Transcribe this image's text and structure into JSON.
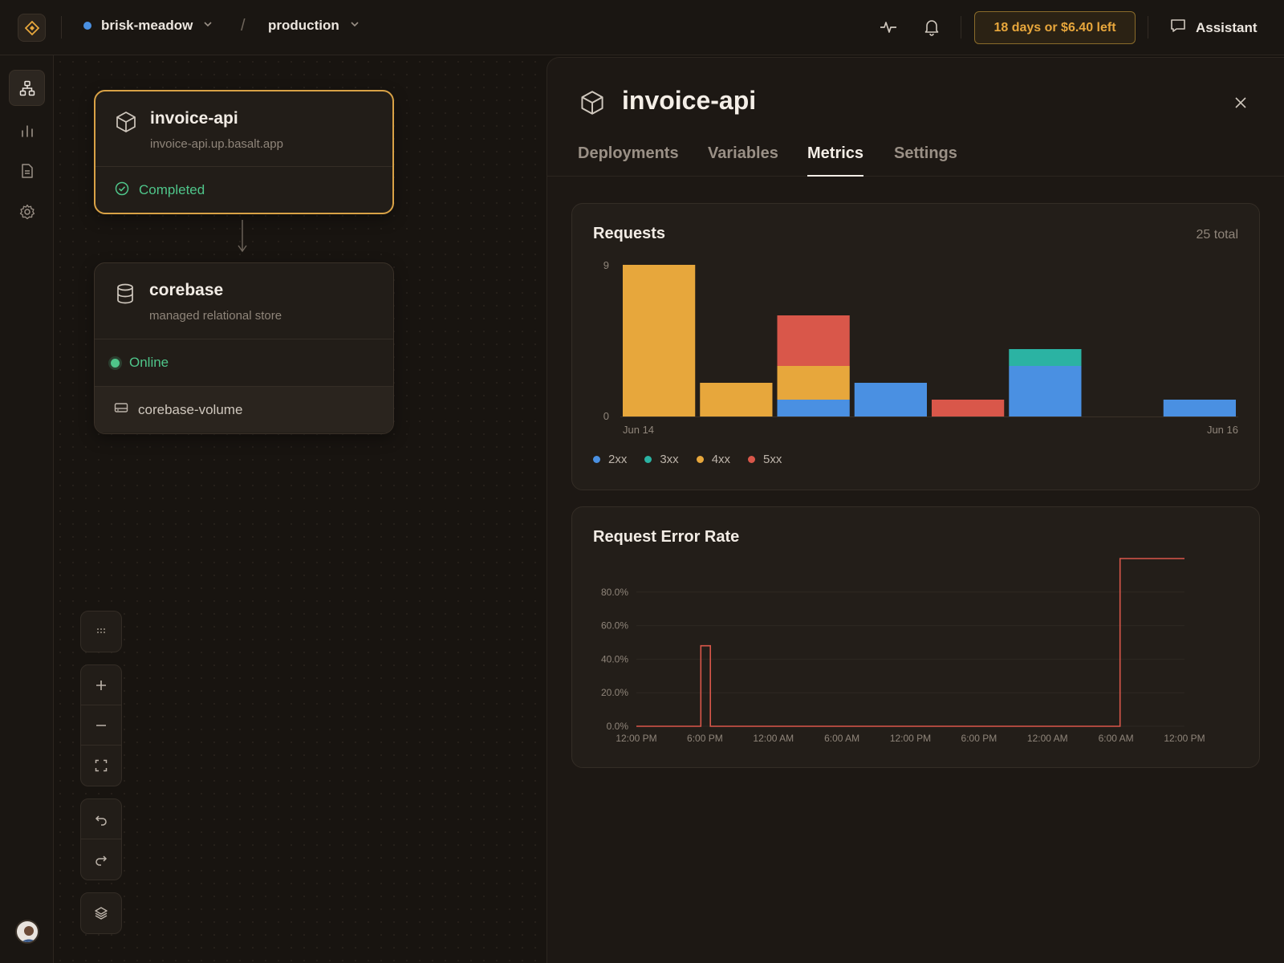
{
  "topbar": {
    "project_name": "brisk-meadow",
    "project_color": "#4a90e2",
    "separator": "/",
    "environment": "production",
    "trial_label": "18 days or $6.40 left",
    "assistant_label": "Assistant"
  },
  "canvas": {
    "service_card": {
      "name": "invoice-api",
      "domain": "invoice-api.up.basalt.app",
      "status": "Completed"
    },
    "database_card": {
      "name": "corebase",
      "description": "managed relational store",
      "status": "Online",
      "volume": "corebase-volume"
    }
  },
  "panel": {
    "title": "invoice-api",
    "tabs": [
      "Deployments",
      "Variables",
      "Metrics",
      "Settings"
    ],
    "active_tab": "Metrics"
  },
  "colors": {
    "2xx": "#4a90e2",
    "3xx": "#2bb3a3",
    "4xx": "#e7a73c",
    "5xx": "#d9574a",
    "accent": "#d9a246"
  },
  "requests_chart": {
    "title": "Requests",
    "total_label": "25 total",
    "legend": [
      "2xx",
      "3xx",
      "4xx",
      "5xx"
    ]
  },
  "error_chart": {
    "title": "Request Error Rate"
  },
  "chart_data": [
    {
      "type": "bar",
      "stacked": true,
      "title": "Requests",
      "x_tick_labels": [
        "Jun 14",
        "Jun 16"
      ],
      "categories": [
        "b1",
        "b2",
        "b3",
        "b4",
        "b5",
        "b6",
        "b7",
        "b8"
      ],
      "series": [
        {
          "name": "2xx",
          "values": [
            0,
            0,
            1,
            2,
            0,
            3,
            0,
            1
          ]
        },
        {
          "name": "3xx",
          "values": [
            0,
            0,
            0,
            0,
            0,
            1,
            0,
            0
          ]
        },
        {
          "name": "4xx",
          "values": [
            9,
            2,
            2,
            0,
            0,
            0,
            0,
            0
          ]
        },
        {
          "name": "5xx",
          "values": [
            0,
            0,
            3,
            0,
            1,
            0,
            0,
            0
          ]
        }
      ],
      "ylim": [
        0,
        9
      ],
      "y_tick_labels": [
        "9",
        "0"
      ],
      "legend_position": "bottom-left"
    },
    {
      "type": "line",
      "title": "Request Error Rate",
      "step": true,
      "x_tick_labels": [
        "12:00 PM",
        "6:00 PM",
        "12:00 AM",
        "6:00 AM",
        "12:00 PM",
        "6:00 PM",
        "12:00 AM",
        "6:00 AM",
        "12:00 PM"
      ],
      "x": [
        0,
        4.7,
        4.7,
        5.4,
        5.4,
        35.3,
        35.3,
        40
      ],
      "y": [
        0,
        0,
        48,
        48,
        0,
        0,
        100,
        100
      ],
      "x_unit": "hours",
      "xlim": [
        0,
        40
      ],
      "ylim": [
        0,
        100
      ],
      "y_tick_labels": [
        "0.0%",
        "20.0%",
        "40.0%",
        "60.0%",
        "80.0%"
      ],
      "grid": true
    }
  ]
}
